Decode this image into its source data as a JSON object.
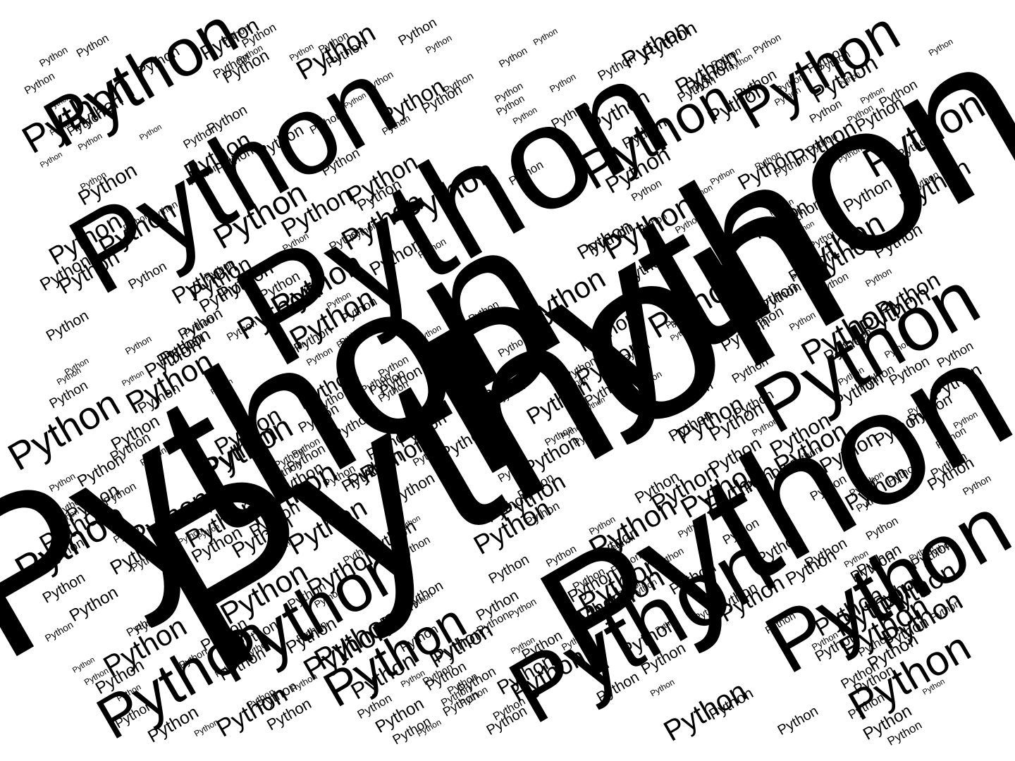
{
  "wordcloud": {
    "word": "Python",
    "text_color": "#000000",
    "background_color": "#ffffff",
    "rotation_degrees": -30,
    "word_count": 430
  }
}
